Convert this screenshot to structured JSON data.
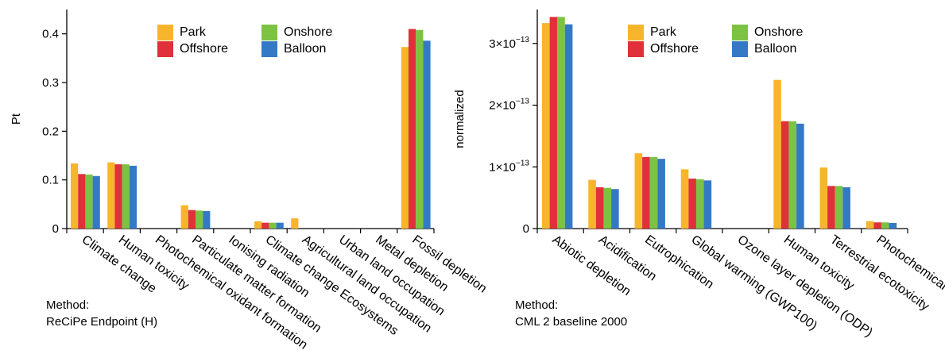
{
  "colors": {
    "Park": "#F7B52C",
    "Offshore": "#E0303A",
    "Onshore": "#7CC243",
    "Balloon": "#3479C6"
  },
  "chart_data": [
    {
      "type": "bar",
      "ylabel": "Pt",
      "ylim": [
        0,
        0.45
      ],
      "yticks": [
        "0",
        "0.1",
        "0.2",
        "0.3",
        "0.4"
      ],
      "ytick_values": [
        0,
        0.1,
        0.2,
        0.3,
        0.4
      ],
      "legend_placement": "top-center",
      "categories": [
        "Climate change",
        "Human toxicity",
        "Photochemical oxidant formation",
        "Particulate matter formation",
        "Ionising radiation",
        "Climate change Ecosystems",
        "Agricultural land occupation",
        "Urban land occupation",
        "Metal depletion",
        "Fossil depletion"
      ],
      "series": [
        {
          "name": "Park",
          "values": [
            0.134,
            0.136,
            0,
            0.048,
            0,
            0.015,
            0.021,
            0,
            0,
            0.373
          ]
        },
        {
          "name": "Offshore",
          "values": [
            0.112,
            0.132,
            0,
            0.038,
            0,
            0.012,
            0,
            0,
            0,
            0.41
          ]
        },
        {
          "name": "Onshore",
          "values": [
            0.111,
            0.132,
            0,
            0.037,
            0,
            0.012,
            0,
            0,
            0,
            0.408
          ]
        },
        {
          "name": "Balloon",
          "values": [
            0.108,
            0.129,
            0,
            0.036,
            0,
            0.012,
            0,
            0,
            0,
            0.386
          ]
        }
      ],
      "method_label": "Method:",
      "method_name": "ReCiPe Endpoint (H)"
    },
    {
      "type": "bar",
      "ylabel": "normalized",
      "ylim": [
        0,
        3.55
      ],
      "ytick_values": [
        0,
        1,
        2,
        3
      ],
      "yticks_mantissa": [
        "0",
        "1×10",
        "2×10",
        "3×10"
      ],
      "ytick_exponent": "−13",
      "legend_placement": "top-center",
      "categories": [
        "Abiotic depletion",
        "Acidification",
        "Eutrophication",
        "Global warming (GWP100)",
        "Ozone layer depletion (ODP)",
        "Human toxicity",
        "Terrestrial ecotoxicity",
        "Photochemical oxidation"
      ],
      "series": [
        {
          "name": "Park",
          "values": [
            3.33,
            0.79,
            1.22,
            0.96,
            0,
            2.41,
            0.99,
            0.12
          ]
        },
        {
          "name": "Offshore",
          "values": [
            3.43,
            0.67,
            1.16,
            0.81,
            0,
            1.74,
            0.69,
            0.1
          ]
        },
        {
          "name": "Onshore",
          "values": [
            3.43,
            0.66,
            1.16,
            0.8,
            0,
            1.74,
            0.69,
            0.1
          ]
        },
        {
          "name": "Balloon",
          "values": [
            3.31,
            0.64,
            1.13,
            0.78,
            0,
            1.7,
            0.67,
            0.09
          ]
        }
      ],
      "method_label": "Method:",
      "method_name": "CML 2 baseline 2000"
    }
  ]
}
